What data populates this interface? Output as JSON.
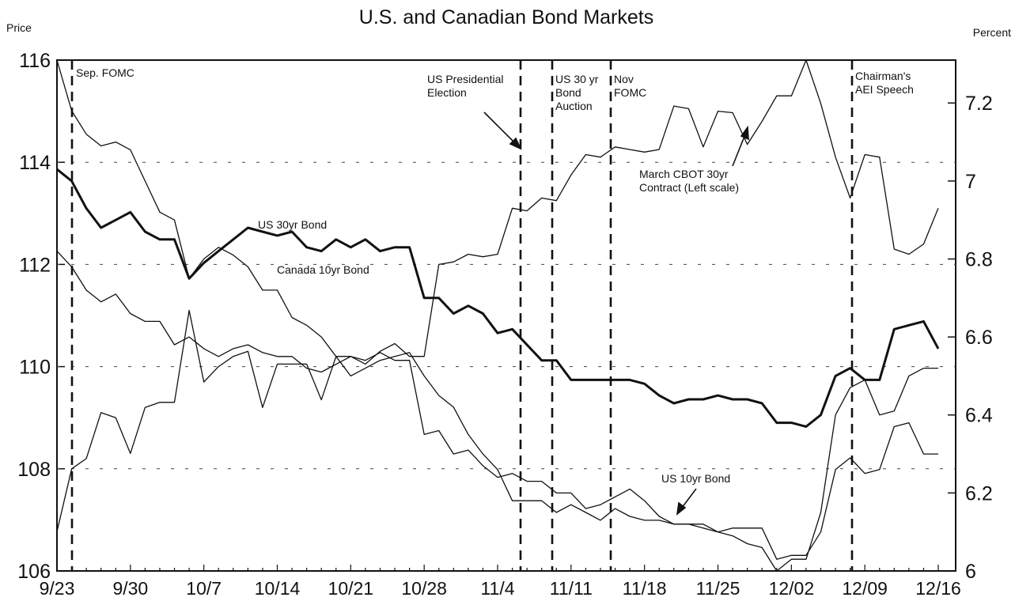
{
  "chart_data": {
    "type": "line",
    "title": "U.S. and Canadian Bond Markets",
    "y_label": "Price",
    "y2_label": "Percent",
    "categories": [
      "9/23",
      null,
      null,
      null,
      null,
      "9/30",
      null,
      null,
      null,
      null,
      "10/7",
      null,
      null,
      null,
      null,
      "10/14",
      null,
      null,
      null,
      null,
      "10/21",
      null,
      null,
      null,
      null,
      "10/28",
      null,
      null,
      null,
      null,
      "11/4",
      null,
      null,
      null,
      null,
      "11/11",
      null,
      null,
      null,
      null,
      "11/18",
      null,
      null,
      null,
      null,
      "11/25",
      null,
      null,
      null,
      null,
      "12/02",
      null,
      null,
      null,
      null,
      "12/09",
      null,
      null,
      null,
      null,
      "12/16"
    ],
    "ylim": [
      106,
      116
    ],
    "yticks": [
      106,
      108,
      110,
      112,
      114,
      116
    ],
    "y2lim": [
      6,
      7.31
    ],
    "y2ticks": [
      6,
      6.2,
      6.4,
      6.6,
      6.8,
      7,
      7.2
    ],
    "grid": true,
    "series": [
      {
        "name": "March CBOT 30yr Contract (Left scale)",
        "color": "#111111",
        "width": 1.3,
        "values": [
          106.77,
          108.0,
          108.2,
          109.1,
          109.0,
          108.3,
          109.2,
          109.3,
          109.3,
          111.1,
          109.7,
          110.0,
          110.2,
          110.3,
          109.2,
          110.05,
          110.05,
          110.05,
          109.35,
          110.2,
          110.2,
          110.05,
          110.3,
          110.45,
          110.2,
          110.2,
          112.0,
          112.05,
          112.2,
          112.15,
          112.2,
          113.1,
          113.05,
          113.3,
          113.25,
          113.75,
          114.15,
          114.1,
          114.3,
          114.25,
          114.2,
          114.25,
          115.1,
          115.05,
          114.3,
          115.0,
          114.97,
          114.35,
          114.8,
          115.3,
          115.3,
          116.0,
          115.15,
          114.1,
          113.3,
          114.15,
          114.1,
          112.3,
          112.2,
          112.4,
          113.1
        ]
      },
      {
        "name": "US 30yr Bond",
        "color": "#111111",
        "width": 3,
        "axis": "y2",
        "values": [
          7.03,
          7.0,
          6.93,
          6.88,
          6.9,
          6.92,
          6.87,
          6.85,
          6.85,
          6.75,
          6.79,
          6.82,
          6.85,
          6.88,
          6.87,
          6.86,
          6.87,
          6.83,
          6.82,
          6.85,
          6.83,
          6.85,
          6.82,
          6.83,
          6.83,
          6.7,
          6.7,
          6.66,
          6.68,
          6.66,
          6.61,
          6.62,
          6.58,
          6.54,
          6.54,
          6.49,
          6.49,
          6.49,
          6.49,
          6.49,
          6.48,
          6.45,
          6.43,
          6.44,
          6.44,
          6.45,
          6.44,
          6.44,
          6.43,
          6.38,
          6.38,
          6.37,
          6.4,
          6.5,
          6.52,
          6.49,
          6.49,
          6.62,
          6.63,
          6.64,
          6.57
        ]
      },
      {
        "name": "Canada 10yr Bond",
        "color": "#111111",
        "width": 1.3,
        "axis": "y2",
        "values": [
          7.31,
          7.18,
          7.12,
          7.09,
          7.1,
          7.08,
          7.0,
          6.92,
          6.9,
          6.75,
          6.8,
          6.83,
          6.81,
          6.78,
          6.72,
          6.72,
          6.65,
          6.63,
          6.6,
          6.55,
          6.5,
          6.52,
          6.54,
          6.55,
          6.56,
          6.5,
          6.45,
          6.42,
          6.35,
          6.3,
          6.26,
          6.18,
          6.18,
          6.18,
          6.15,
          6.17,
          6.15,
          6.13,
          6.16,
          6.14,
          6.13,
          6.13,
          6.12,
          6.12,
          6.12,
          6.1,
          6.09,
          6.07,
          6.06,
          6.0,
          6.03,
          6.03,
          6.15,
          6.4,
          6.47,
          6.49,
          6.4,
          6.41,
          6.5,
          6.52,
          6.52
        ]
      },
      {
        "name": "US 10yr Bond",
        "color": "#111111",
        "width": 1.3,
        "axis": "y2",
        "values": [
          6.82,
          6.78,
          6.72,
          6.69,
          6.71,
          6.66,
          6.64,
          6.64,
          6.58,
          6.6,
          6.57,
          6.55,
          6.57,
          6.58,
          6.56,
          6.55,
          6.55,
          6.52,
          6.51,
          6.53,
          6.55,
          6.54,
          6.56,
          6.54,
          6.54,
          6.35,
          6.36,
          6.3,
          6.31,
          6.27,
          6.24,
          6.25,
          6.23,
          6.23,
          6.2,
          6.2,
          6.16,
          6.17,
          6.19,
          6.21,
          6.18,
          6.14,
          6.12,
          6.12,
          6.11,
          6.1,
          6.11,
          6.11,
          6.11,
          6.03,
          6.04,
          6.04,
          6.1,
          6.26,
          6.29,
          6.25,
          6.26,
          6.37,
          6.38,
          6.3,
          6.3
        ]
      }
    ],
    "annotations": [
      "Sep. FOMC",
      "US Presidential Election",
      "US 30 yr Bond Auction",
      "Nov FOMC",
      "Chairman's AEI Speech"
    ]
  }
}
